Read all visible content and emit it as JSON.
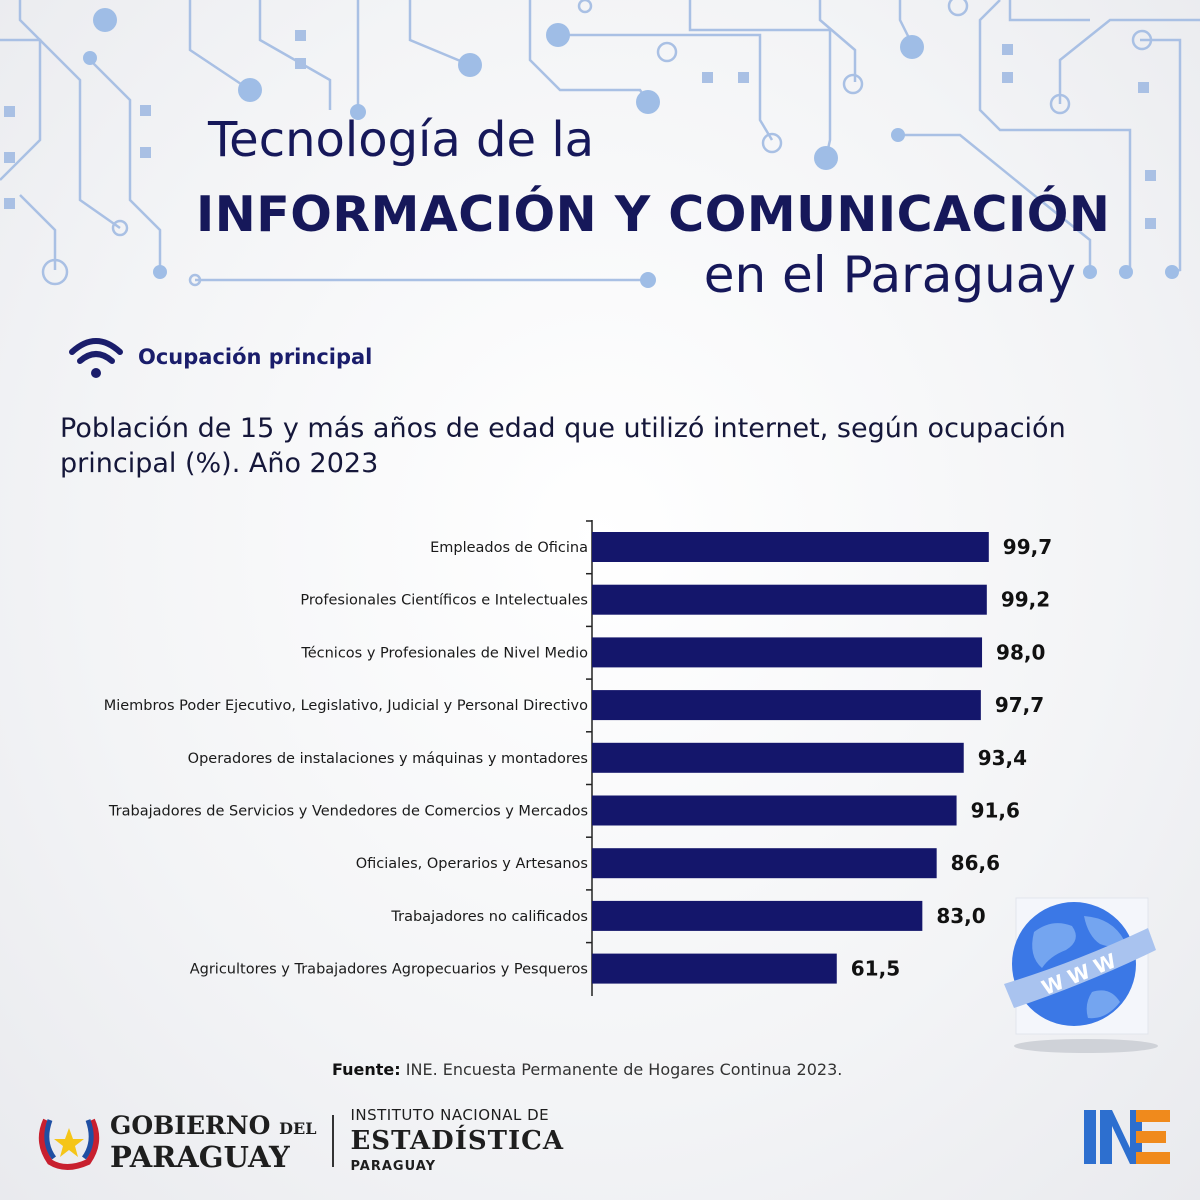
{
  "header": {
    "title_line1": "Tecnología de la",
    "title_line2": "INFORMACIÓN  Y COMUNICACIÓN",
    "title_line3": "en el Paraguay"
  },
  "section": {
    "label": "Ocupación principal",
    "icon": "wifi-icon"
  },
  "chart_title": "Población de 15 y más años de edad que utilizó internet, según ocupación principal (%). Año 2023",
  "chart_data": {
    "type": "bar",
    "orientation": "horizontal",
    "categories": [
      "Empleados de Oficina",
      "Profesionales Científicos e Intelectuales",
      "Técnicos y Profesionales de Nivel Medio",
      "Miembros Poder Ejecutivo, Legislativo, Judicial y Personal Directivo",
      "Operadores de instalaciones y máquinas y montadores",
      "Trabajadores de Servicios y Vendedores de Comercios y Mercados",
      "Oficiales, Operarios y Artesanos",
      "Trabajadores no calificados",
      "Agricultores y Trabajadores Agropecuarios y Pesqueros"
    ],
    "values": [
      99.7,
      99.2,
      98.0,
      97.7,
      93.4,
      91.6,
      86.6,
      83.0,
      61.5
    ],
    "value_labels": [
      "99,7",
      "99,2",
      "98,0",
      "97,7",
      "93,4",
      "91,6",
      "86,6",
      "83,0",
      "61,5"
    ],
    "bar_color": "#14166b",
    "xlim": [
      0,
      100
    ],
    "grid": false,
    "legend": "none"
  },
  "source": {
    "label": "Fuente:",
    "text": "INE. Encuesta Permanente de Hogares Continua 2023."
  },
  "footer": {
    "gov_line1": "GOBIERNO",
    "gov_line1_small": "DEL",
    "gov_line2": "PARAGUAY",
    "ine_line1": "INSTITUTO NACIONAL DE",
    "ine_line2": "ESTADÍSTICA",
    "ine_line3": "PARAGUAY"
  },
  "globe_text": "WWW",
  "colors": {
    "primary": "#14166b",
    "circuit": "#8fb0dd",
    "globe": "#3b78e6"
  }
}
